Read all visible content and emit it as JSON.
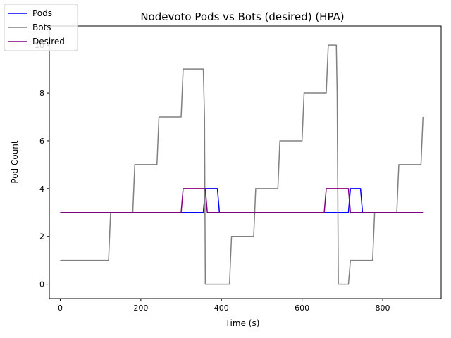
{
  "chart_data": {
    "type": "line",
    "title": "Nodevoto Pods vs Bots (desired)  (HPA)",
    "xlabel": "Time (s)",
    "ylabel": "Pod Count",
    "xlim": [
      -27,
      945
    ],
    "ylim": [
      -0.6,
      10.8
    ],
    "xticks": [
      0,
      200,
      400,
      600,
      800
    ],
    "yticks": [
      0,
      2,
      4,
      6,
      8,
      10
    ],
    "legend_position": "top-left",
    "series": [
      {
        "name": "Pods",
        "color": "#0000ff",
        "x": [
          0,
          355,
          360,
          390,
          395,
          715,
          720,
          745,
          750,
          900
        ],
        "y": [
          3,
          3,
          4,
          4,
          3,
          3,
          4,
          4,
          3,
          3
        ]
      },
      {
        "name": "Bots",
        "color": "#808080",
        "x": [
          0,
          120,
          125,
          180,
          185,
          240,
          245,
          300,
          305,
          355,
          358,
          360,
          420,
          425,
          480,
          485,
          540,
          545,
          600,
          605,
          660,
          665,
          685,
          687,
          690,
          715,
          720,
          775,
          780,
          835,
          840,
          895,
          900
        ],
        "y": [
          1,
          1,
          3,
          3,
          5,
          5,
          7,
          7,
          9,
          9,
          7,
          0,
          0,
          2,
          2,
          4,
          4,
          6,
          6,
          8,
          8,
          10,
          10,
          8,
          0,
          0,
          1,
          1,
          3,
          3,
          5,
          5,
          7
        ]
      },
      {
        "name": "Desired",
        "color": "#800080",
        "x": [
          0,
          300,
          305,
          360,
          365,
          655,
          660,
          715,
          720,
          900
        ],
        "y": [
          3,
          3,
          4,
          4,
          3,
          3,
          4,
          4,
          3,
          3
        ]
      }
    ]
  }
}
